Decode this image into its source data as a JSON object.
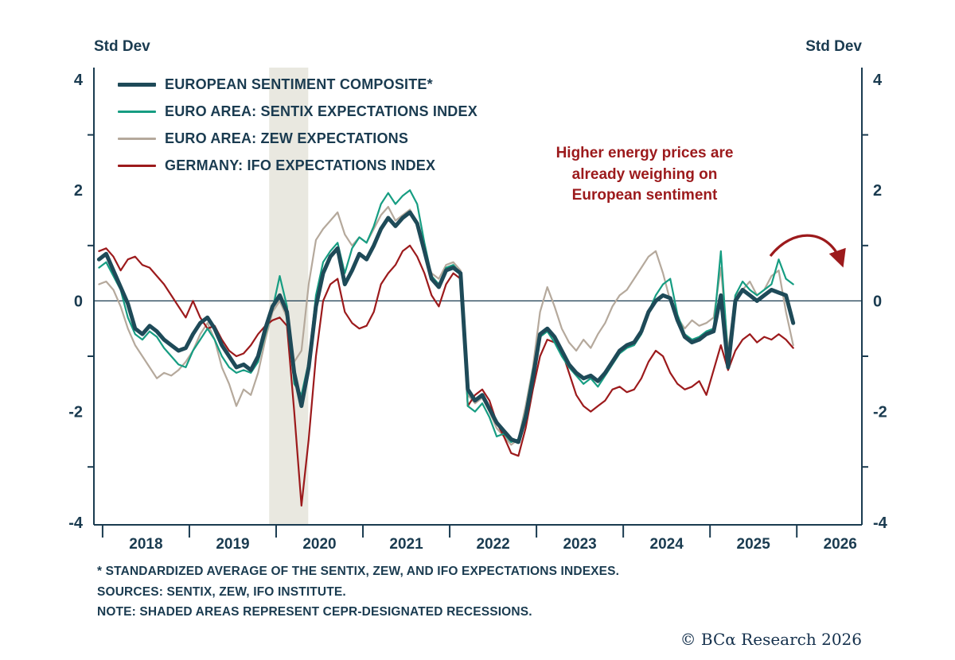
{
  "colors": {
    "text": "#1a3b50",
    "axis": "#1a3b50",
    "background": "#ffffff",
    "copyright": "#14304c"
  },
  "chart_data": {
    "type": "line",
    "title": "",
    "ylabel_left": "Std Dev",
    "ylabel_right": "Std Dev",
    "ylim": [
      -4,
      4
    ],
    "y_ticks": [
      4,
      2,
      0,
      -2,
      -4
    ],
    "y_minor_ticks": [
      3,
      1,
      -1,
      -3
    ],
    "x_year_labels": [
      2018,
      2019,
      2020,
      2021,
      2022,
      2023,
      2024,
      2025,
      2026
    ],
    "x_domain": [
      2017.9,
      2026.75
    ],
    "grid": false,
    "legend_position": "top-left-inside",
    "zero_line": true,
    "recession_bands": [
      {
        "start": 2019.92,
        "end": 2020.37,
        "color": "#e9e8e0"
      }
    ],
    "annotation": {
      "text": "Higher energy prices are\nalready weighing on\nEuropean sentiment",
      "color": "#9c1a1c"
    },
    "arrow": {
      "color": "#9c1a1c"
    },
    "months": [
      "2017-12",
      "2018-01",
      "2018-02",
      "2018-03",
      "2018-04",
      "2018-05",
      "2018-06",
      "2018-07",
      "2018-08",
      "2018-09",
      "2018-10",
      "2018-11",
      "2018-12",
      "2019-01",
      "2019-02",
      "2019-03",
      "2019-04",
      "2019-05",
      "2019-06",
      "2019-07",
      "2019-08",
      "2019-09",
      "2019-10",
      "2019-11",
      "2019-12",
      "2020-01",
      "2020-02",
      "2020-03",
      "2020-04",
      "2020-05",
      "2020-06",
      "2020-07",
      "2020-08",
      "2020-09",
      "2020-10",
      "2020-11",
      "2020-12",
      "2021-01",
      "2021-02",
      "2021-03",
      "2021-04",
      "2021-05",
      "2021-06",
      "2021-07",
      "2021-08",
      "2021-09",
      "2021-10",
      "2021-11",
      "2021-12",
      "2022-01",
      "2022-02",
      "2022-03",
      "2022-04",
      "2022-05",
      "2022-06",
      "2022-07",
      "2022-08",
      "2022-09",
      "2022-10",
      "2022-11",
      "2022-12",
      "2023-01",
      "2023-02",
      "2023-03",
      "2023-04",
      "2023-05",
      "2023-06",
      "2023-07",
      "2023-08",
      "2023-09",
      "2023-10",
      "2023-11",
      "2023-12",
      "2024-01",
      "2024-02",
      "2024-03",
      "2024-04",
      "2024-05",
      "2024-06",
      "2024-07",
      "2024-08",
      "2024-09",
      "2024-10",
      "2024-11",
      "2024-12",
      "2025-01",
      "2025-02",
      "2025-03",
      "2025-04",
      "2025-05",
      "2025-06",
      "2025-07",
      "2025-08",
      "2025-09",
      "2025-10",
      "2025-11",
      "2025-12"
    ],
    "draw_order": [
      2,
      3,
      1,
      0
    ],
    "series": [
      {
        "name": "EUROPEAN SENTIMENT COMPOSITE*",
        "color": "#1e4a58",
        "width": 5,
        "values": [
          0.75,
          0.85,
          0.55,
          0.25,
          -0.05,
          -0.5,
          -0.6,
          -0.45,
          -0.55,
          -0.7,
          -0.8,
          -0.9,
          -0.85,
          -0.6,
          -0.4,
          -0.3,
          -0.5,
          -0.8,
          -1.0,
          -1.2,
          -1.15,
          -1.25,
          -1.0,
          -0.5,
          -0.1,
          0.1,
          -0.2,
          -1.3,
          -1.9,
          -1.2,
          -0.1,
          0.5,
          0.8,
          0.95,
          0.3,
          0.55,
          0.85,
          0.75,
          1.0,
          1.3,
          1.5,
          1.35,
          1.5,
          1.6,
          1.4,
          0.9,
          0.4,
          0.25,
          0.55,
          0.6,
          0.5,
          -1.6,
          -1.8,
          -1.7,
          -1.95,
          -2.2,
          -2.35,
          -2.5,
          -2.55,
          -2.1,
          -1.4,
          -0.6,
          -0.5,
          -0.65,
          -0.9,
          -1.15,
          -1.3,
          -1.4,
          -1.35,
          -1.45,
          -1.3,
          -1.1,
          -0.9,
          -0.8,
          -0.75,
          -0.55,
          -0.2,
          0.0,
          0.1,
          0.05,
          -0.35,
          -0.65,
          -0.75,
          -0.7,
          -0.6,
          -0.55,
          0.1,
          -1.2,
          0.0,
          0.2,
          0.1,
          0.0,
          0.1,
          0.2,
          0.15,
          0.1,
          -0.4
        ]
      },
      {
        "name": "EURO AREA: SENTIX EXPECTATIONS INDEX",
        "color": "#169d82",
        "width": 2.2,
        "values": [
          0.6,
          0.7,
          0.45,
          0.2,
          -0.3,
          -0.6,
          -0.7,
          -0.55,
          -0.65,
          -0.85,
          -1.0,
          -1.15,
          -1.2,
          -0.9,
          -0.7,
          -0.5,
          -0.7,
          -1.0,
          -1.2,
          -1.3,
          -1.25,
          -1.3,
          -1.1,
          -0.6,
          -0.15,
          0.45,
          -0.1,
          -1.5,
          -1.7,
          -1.1,
          0.1,
          0.7,
          0.9,
          1.05,
          0.5,
          0.95,
          1.15,
          1.05,
          1.35,
          1.75,
          1.95,
          1.75,
          1.9,
          2.0,
          1.75,
          1.05,
          0.45,
          0.3,
          0.6,
          0.65,
          0.5,
          -1.9,
          -2.0,
          -1.85,
          -2.1,
          -2.45,
          -2.4,
          -2.55,
          -2.5,
          -2.0,
          -1.25,
          -0.65,
          -0.55,
          -0.75,
          -1.0,
          -1.2,
          -1.35,
          -1.5,
          -1.4,
          -1.55,
          -1.35,
          -1.15,
          -0.95,
          -0.85,
          -0.8,
          -0.6,
          -0.2,
          0.1,
          0.3,
          0.4,
          -0.25,
          -0.6,
          -0.7,
          -0.65,
          -0.55,
          -0.5,
          0.9,
          -1.05,
          0.1,
          0.35,
          0.2,
          0.1,
          0.2,
          0.3,
          0.75,
          0.4,
          0.3
        ]
      },
      {
        "name": "EURO AREA: ZEW EXPECTATIONS",
        "color": "#b5a99c",
        "width": 2.2,
        "values": [
          0.3,
          0.35,
          0.2,
          -0.1,
          -0.5,
          -0.8,
          -1.0,
          -1.2,
          -1.4,
          -1.3,
          -1.35,
          -1.25,
          -1.1,
          -0.9,
          -0.6,
          -0.4,
          -0.7,
          -1.2,
          -1.5,
          -1.9,
          -1.6,
          -1.7,
          -1.3,
          -0.7,
          -0.2,
          0.0,
          -0.3,
          -1.1,
          -0.9,
          0.3,
          1.1,
          1.3,
          1.45,
          1.6,
          1.2,
          1.0,
          1.15,
          1.05,
          1.3,
          1.55,
          1.7,
          1.45,
          1.55,
          1.65,
          1.4,
          0.85,
          0.5,
          0.4,
          0.65,
          0.7,
          0.55,
          -1.7,
          -1.85,
          -1.75,
          -2.0,
          -2.3,
          -2.45,
          -2.6,
          -2.5,
          -1.9,
          -1.2,
          -0.2,
          0.25,
          -0.1,
          -0.5,
          -0.75,
          -0.9,
          -0.7,
          -0.85,
          -0.6,
          -0.4,
          -0.1,
          0.1,
          0.2,
          0.4,
          0.6,
          0.8,
          0.9,
          0.5,
          0.0,
          -0.3,
          -0.5,
          -0.35,
          -0.45,
          -0.4,
          -0.3,
          0.6,
          -0.9,
          0.1,
          0.2,
          0.35,
          0.1,
          0.2,
          0.45,
          0.55,
          -0.2,
          -0.8
        ]
      },
      {
        "name": "GERMANY: IFO EXPECTATIONS INDEX",
        "color": "#9c1a1c",
        "width": 2.2,
        "values": [
          0.9,
          0.95,
          0.8,
          0.55,
          0.75,
          0.8,
          0.65,
          0.6,
          0.45,
          0.3,
          0.1,
          -0.1,
          -0.3,
          0.0,
          -0.3,
          -0.5,
          -0.45,
          -0.7,
          -0.9,
          -1.0,
          -0.95,
          -0.8,
          -0.6,
          -0.45,
          -0.35,
          -0.3,
          -0.45,
          -2.0,
          -3.7,
          -2.5,
          -1.0,
          0.0,
          0.3,
          0.4,
          -0.2,
          -0.4,
          -0.5,
          -0.45,
          -0.2,
          0.3,
          0.5,
          0.65,
          0.9,
          1.0,
          0.8,
          0.5,
          0.1,
          -0.1,
          0.3,
          0.5,
          0.4,
          -1.9,
          -1.7,
          -1.6,
          -1.8,
          -2.2,
          -2.45,
          -2.75,
          -2.8,
          -2.3,
          -1.6,
          -1.0,
          -0.7,
          -0.75,
          -0.9,
          -1.3,
          -1.7,
          -1.9,
          -2.0,
          -1.9,
          -1.8,
          -1.6,
          -1.55,
          -1.65,
          -1.6,
          -1.4,
          -1.1,
          -0.9,
          -1.0,
          -1.3,
          -1.5,
          -1.6,
          -1.55,
          -1.45,
          -1.7,
          -1.25,
          -0.8,
          -1.25,
          -0.9,
          -0.7,
          -0.6,
          -0.75,
          -0.65,
          -0.7,
          -0.6,
          -0.7,
          -0.85
        ]
      }
    ]
  },
  "footnotes": [
    "* STANDARDIZED AVERAGE OF THE SENTIX, ZEW, AND IFO EXPECTATIONS INDEXES.",
    "SOURCES: SENTIX, ZEW, IFO INSTITUTE.",
    "NOTE: SHADED AREAS REPRESENT CEPR-DESIGNATED RECESSIONS."
  ],
  "copyright": "© BCα Research 2026"
}
